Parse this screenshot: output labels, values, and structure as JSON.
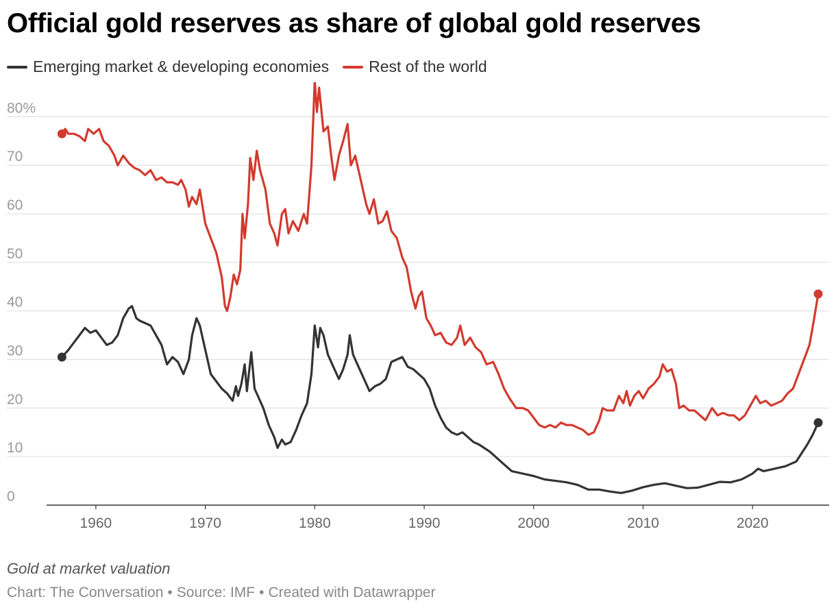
{
  "header": {
    "title": "Official gold reserves as share of global gold reserves"
  },
  "legend": [
    {
      "label": "Emerging market & developing economies",
      "color": "#333333"
    },
    {
      "label": "Rest of the world",
      "color": "#d23a2e"
    }
  ],
  "footer": {
    "note": "Gold at market valuation",
    "chart_credit": "Chart: The Conversation",
    "source": "Source: IMF",
    "created_with": "Created with Datawrapper",
    "separator": "•"
  },
  "chart_data": {
    "type": "line",
    "title": "Official gold reserves as share of global gold reserves",
    "xlabel": "",
    "ylabel": "",
    "xlim": [
      1955.5,
      2027
    ],
    "ylim": [
      0,
      85
    ],
    "x_ticks": [
      1960,
      1970,
      1980,
      1990,
      2000,
      2010,
      2020
    ],
    "x_tick_labels": [
      "1960",
      "1970",
      "1980",
      "1990",
      "2000",
      "2010",
      "2020"
    ],
    "y_ticks": [
      0,
      10,
      20,
      30,
      40,
      50,
      60,
      70,
      80
    ],
    "y_tick_labels": [
      "0",
      "10",
      "20",
      "30",
      "40",
      "50",
      "60",
      "70",
      "80%"
    ],
    "grid": true,
    "legend_position": "top-left",
    "series": [
      {
        "name": "Emerging market & developing economies",
        "color": "#333333",
        "points": [
          [
            1956.9,
            30.5
          ],
          [
            1957.5,
            32.0
          ],
          [
            1958.0,
            33.5
          ],
          [
            1958.5,
            35.0
          ],
          [
            1959.0,
            36.5
          ],
          [
            1959.5,
            35.5
          ],
          [
            1960.0,
            36.0
          ],
          [
            1960.5,
            34.5
          ],
          [
            1961.0,
            33.0
          ],
          [
            1961.5,
            33.5
          ],
          [
            1962.0,
            35.0
          ],
          [
            1962.5,
            38.5
          ],
          [
            1963.0,
            40.5
          ],
          [
            1963.3,
            41.0
          ],
          [
            1963.7,
            38.5
          ],
          [
            1964.0,
            38.0
          ],
          [
            1964.5,
            37.5
          ],
          [
            1965.0,
            37.0
          ],
          [
            1965.5,
            35.0
          ],
          [
            1966.0,
            33.0
          ],
          [
            1966.5,
            29.0
          ],
          [
            1967.0,
            30.5
          ],
          [
            1967.5,
            29.5
          ],
          [
            1968.0,
            27.0
          ],
          [
            1968.5,
            30.0
          ],
          [
            1968.8,
            35.0
          ],
          [
            1969.2,
            38.5
          ],
          [
            1969.5,
            37.0
          ],
          [
            1970.0,
            32.0
          ],
          [
            1970.5,
            27.0
          ],
          [
            1971.0,
            25.5
          ],
          [
            1971.5,
            24.0
          ],
          [
            1972.0,
            23.0
          ],
          [
            1972.5,
            21.5
          ],
          [
            1972.8,
            24.5
          ],
          [
            1973.0,
            22.5
          ],
          [
            1973.3,
            25.0
          ],
          [
            1973.6,
            29.0
          ],
          [
            1973.8,
            23.5
          ],
          [
            1974.2,
            31.5
          ],
          [
            1974.5,
            24.0
          ],
          [
            1974.8,
            22.5
          ],
          [
            1975.3,
            20.0
          ],
          [
            1975.8,
            16.5
          ],
          [
            1976.3,
            14.0
          ],
          [
            1976.6,
            11.8
          ],
          [
            1977.0,
            13.5
          ],
          [
            1977.3,
            12.5
          ],
          [
            1977.8,
            13.0
          ],
          [
            1978.3,
            15.5
          ],
          [
            1978.8,
            18.5
          ],
          [
            1979.3,
            21.0
          ],
          [
            1979.7,
            27.0
          ],
          [
            1980.0,
            37.0
          ],
          [
            1980.3,
            32.5
          ],
          [
            1980.5,
            36.5
          ],
          [
            1980.8,
            35.0
          ],
          [
            1981.2,
            31.0
          ],
          [
            1981.7,
            28.5
          ],
          [
            1982.2,
            26.0
          ],
          [
            1982.6,
            28.0
          ],
          [
            1983.0,
            31.0
          ],
          [
            1983.2,
            35.0
          ],
          [
            1983.5,
            31.0
          ],
          [
            1984.0,
            28.5
          ],
          [
            1984.5,
            26.0
          ],
          [
            1985.0,
            23.5
          ],
          [
            1985.5,
            24.5
          ],
          [
            1986.0,
            25.0
          ],
          [
            1986.5,
            26.0
          ],
          [
            1987.0,
            29.5
          ],
          [
            1987.5,
            30.0
          ],
          [
            1988.0,
            30.5
          ],
          [
            1988.5,
            28.5
          ],
          [
            1989.0,
            28.0
          ],
          [
            1989.5,
            27.0
          ],
          [
            1990.0,
            26.0
          ],
          [
            1990.5,
            24.0
          ],
          [
            1991.0,
            20.5
          ],
          [
            1991.5,
            18.0
          ],
          [
            1992.0,
            16.0
          ],
          [
            1992.5,
            15.0
          ],
          [
            1993.0,
            14.5
          ],
          [
            1993.5,
            15.0
          ],
          [
            1994.0,
            14.0
          ],
          [
            1994.5,
            13.0
          ],
          [
            1995.0,
            12.5
          ],
          [
            1996.0,
            11.0
          ],
          [
            1997.0,
            9.0
          ],
          [
            1998.0,
            7.0
          ],
          [
            1999.0,
            6.5
          ],
          [
            2000.0,
            6.0
          ],
          [
            2001.0,
            5.3
          ],
          [
            2002.0,
            5.0
          ],
          [
            2003.0,
            4.7
          ],
          [
            2004.0,
            4.2
          ],
          [
            2005.0,
            3.2
          ],
          [
            2006.0,
            3.2
          ],
          [
            2007.0,
            2.8
          ],
          [
            2008.0,
            2.5
          ],
          [
            2009.0,
            3.0
          ],
          [
            2010.0,
            3.7
          ],
          [
            2011.0,
            4.2
          ],
          [
            2012.0,
            4.5
          ],
          [
            2013.0,
            4.0
          ],
          [
            2014.0,
            3.5
          ],
          [
            2015.0,
            3.6
          ],
          [
            2016.0,
            4.2
          ],
          [
            2017.0,
            4.8
          ],
          [
            2018.0,
            4.7
          ],
          [
            2019.0,
            5.3
          ],
          [
            2020.0,
            6.5
          ],
          [
            2020.5,
            7.5
          ],
          [
            2021.0,
            7.0
          ],
          [
            2022.0,
            7.5
          ],
          [
            2023.0,
            8.0
          ],
          [
            2024.0,
            9.0
          ],
          [
            2025.0,
            12.5
          ],
          [
            2025.5,
            14.5
          ],
          [
            2026.0,
            17.0
          ]
        ]
      },
      {
        "name": "Rest of the world",
        "color": "#d23a2e",
        "points": [
          [
            1956.9,
            76.5
          ],
          [
            1957.2,
            77.5
          ],
          [
            1957.5,
            76.5
          ],
          [
            1958.0,
            76.5
          ],
          [
            1958.5,
            76.0
          ],
          [
            1959.0,
            75.0
          ],
          [
            1959.3,
            77.5
          ],
          [
            1959.8,
            76.5
          ],
          [
            1960.3,
            77.5
          ],
          [
            1960.7,
            75.0
          ],
          [
            1961.2,
            74.0
          ],
          [
            1961.7,
            72.0
          ],
          [
            1962.0,
            70.0
          ],
          [
            1962.5,
            72.0
          ],
          [
            1963.0,
            70.5
          ],
          [
            1963.5,
            69.5
          ],
          [
            1964.0,
            69.0
          ],
          [
            1964.5,
            68.0
          ],
          [
            1965.0,
            69.0
          ],
          [
            1965.5,
            67.0
          ],
          [
            1966.0,
            67.5
          ],
          [
            1966.5,
            66.5
          ],
          [
            1967.0,
            66.5
          ],
          [
            1967.5,
            66.0
          ],
          [
            1967.8,
            67.0
          ],
          [
            1968.2,
            65.0
          ],
          [
            1968.5,
            61.5
          ],
          [
            1968.8,
            63.5
          ],
          [
            1969.2,
            62.0
          ],
          [
            1969.5,
            65.0
          ],
          [
            1970.0,
            58.0
          ],
          [
            1970.5,
            55.0
          ],
          [
            1971.0,
            52.0
          ],
          [
            1971.5,
            47.0
          ],
          [
            1971.8,
            41.0
          ],
          [
            1972.0,
            40.0
          ],
          [
            1972.3,
            43.0
          ],
          [
            1972.6,
            47.5
          ],
          [
            1972.9,
            45.5
          ],
          [
            1973.2,
            48.5
          ],
          [
            1973.4,
            60.0
          ],
          [
            1973.6,
            55.0
          ],
          [
            1973.9,
            62.0
          ],
          [
            1974.1,
            71.5
          ],
          [
            1974.4,
            67.0
          ],
          [
            1974.7,
            73.0
          ],
          [
            1975.0,
            69.0
          ],
          [
            1975.5,
            65.0
          ],
          [
            1975.9,
            58.0
          ],
          [
            1976.3,
            56.0
          ],
          [
            1976.6,
            53.5
          ],
          [
            1977.0,
            60.0
          ],
          [
            1977.3,
            61.0
          ],
          [
            1977.6,
            56.0
          ],
          [
            1978.0,
            58.5
          ],
          [
            1978.5,
            56.5
          ],
          [
            1979.0,
            60.0
          ],
          [
            1979.3,
            58.0
          ],
          [
            1979.7,
            70.0
          ],
          [
            1980.0,
            87.5
          ],
          [
            1980.2,
            81.0
          ],
          [
            1980.4,
            86.0
          ],
          [
            1980.8,
            77.0
          ],
          [
            1981.2,
            78.0
          ],
          [
            1981.5,
            72.0
          ],
          [
            1981.8,
            67.0
          ],
          [
            1982.2,
            72.0
          ],
          [
            1982.6,
            75.0
          ],
          [
            1983.0,
            78.5
          ],
          [
            1983.3,
            70.0
          ],
          [
            1983.7,
            72.0
          ],
          [
            1984.2,
            67.0
          ],
          [
            1984.7,
            62.0
          ],
          [
            1985.0,
            60.0
          ],
          [
            1985.4,
            63.0
          ],
          [
            1985.8,
            58.0
          ],
          [
            1986.2,
            58.5
          ],
          [
            1986.6,
            60.5
          ],
          [
            1987.0,
            56.5
          ],
          [
            1987.5,
            55.0
          ],
          [
            1988.0,
            51.0
          ],
          [
            1988.4,
            49.0
          ],
          [
            1988.8,
            44.0
          ],
          [
            1989.2,
            40.5
          ],
          [
            1989.5,
            43.0
          ],
          [
            1989.8,
            44.0
          ],
          [
            1990.2,
            38.5
          ],
          [
            1990.6,
            37.0
          ],
          [
            1991.0,
            35.0
          ],
          [
            1991.5,
            35.5
          ],
          [
            1992.0,
            33.5
          ],
          [
            1992.5,
            33.0
          ],
          [
            1993.0,
            34.5
          ],
          [
            1993.3,
            37.0
          ],
          [
            1993.7,
            33.0
          ],
          [
            1994.2,
            34.5
          ],
          [
            1994.7,
            32.5
          ],
          [
            1995.2,
            31.5
          ],
          [
            1995.7,
            29.0
          ],
          [
            1996.3,
            29.5
          ],
          [
            1996.8,
            27.0
          ],
          [
            1997.3,
            24.0
          ],
          [
            1997.8,
            22.0
          ],
          [
            1998.4,
            20.0
          ],
          [
            1999.0,
            20.0
          ],
          [
            1999.5,
            19.5
          ],
          [
            2000.0,
            18.0
          ],
          [
            2000.5,
            16.5
          ],
          [
            2001.0,
            16.0
          ],
          [
            2001.5,
            16.5
          ],
          [
            2002.0,
            16.0
          ],
          [
            2002.5,
            17.0
          ],
          [
            2003.0,
            16.5
          ],
          [
            2003.5,
            16.5
          ],
          [
            2004.0,
            16.0
          ],
          [
            2004.5,
            15.5
          ],
          [
            2005.0,
            14.5
          ],
          [
            2005.5,
            15.0
          ],
          [
            2006.0,
            17.5
          ],
          [
            2006.3,
            20.0
          ],
          [
            2006.7,
            19.5
          ],
          [
            2007.3,
            19.5
          ],
          [
            2007.8,
            22.5
          ],
          [
            2008.2,
            21.0
          ],
          [
            2008.5,
            23.5
          ],
          [
            2008.8,
            20.5
          ],
          [
            2009.2,
            22.5
          ],
          [
            2009.6,
            23.5
          ],
          [
            2010.0,
            22.0
          ],
          [
            2010.5,
            24.0
          ],
          [
            2011.0,
            25.0
          ],
          [
            2011.5,
            26.5
          ],
          [
            2011.8,
            29.0
          ],
          [
            2012.2,
            27.5
          ],
          [
            2012.6,
            28.0
          ],
          [
            2013.0,
            25.0
          ],
          [
            2013.3,
            20.0
          ],
          [
            2013.7,
            20.5
          ],
          [
            2014.2,
            19.5
          ],
          [
            2014.7,
            19.5
          ],
          [
            2015.2,
            18.5
          ],
          [
            2015.7,
            17.5
          ],
          [
            2016.3,
            20.0
          ],
          [
            2016.8,
            18.5
          ],
          [
            2017.3,
            19.0
          ],
          [
            2017.8,
            18.5
          ],
          [
            2018.3,
            18.5
          ],
          [
            2018.8,
            17.5
          ],
          [
            2019.3,
            18.5
          ],
          [
            2019.8,
            20.5
          ],
          [
            2020.3,
            22.5
          ],
          [
            2020.7,
            21.0
          ],
          [
            2021.2,
            21.5
          ],
          [
            2021.7,
            20.5
          ],
          [
            2022.2,
            21.0
          ],
          [
            2022.7,
            21.5
          ],
          [
            2023.2,
            23.0
          ],
          [
            2023.7,
            24.0
          ],
          [
            2024.2,
            27.0
          ],
          [
            2024.7,
            30.0
          ],
          [
            2025.2,
            33.0
          ],
          [
            2025.6,
            38.0
          ],
          [
            2026.0,
            43.5
          ]
        ]
      }
    ]
  }
}
